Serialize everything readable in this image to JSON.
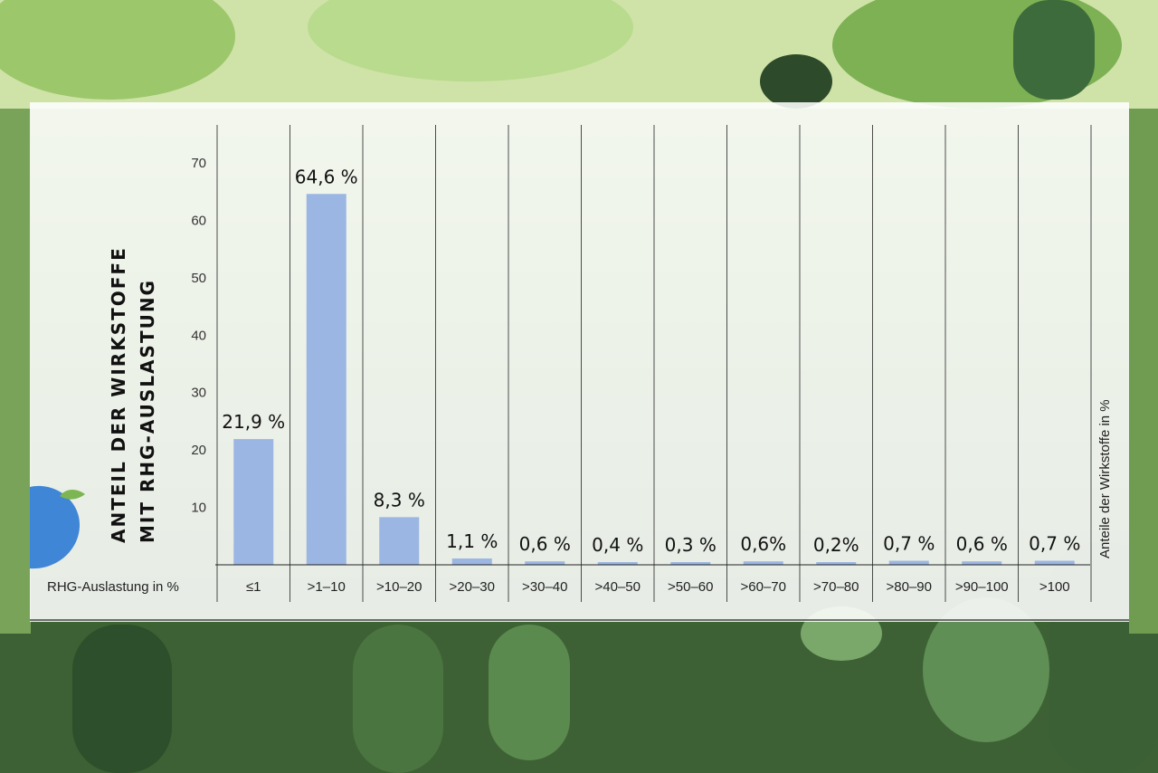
{
  "colors": {
    "bar": "#9bb6e2",
    "grid": "#222222",
    "accent_blue": "#3f86d6",
    "leaf_green": "#7cb552"
  },
  "chart_data": {
    "type": "bar",
    "categories": [
      "≤1",
      ">1–10",
      ">10–20",
      ">20–30",
      ">30–40",
      ">40–50",
      ">50–60",
      ">60–70",
      ">70–80",
      ">80–90",
      ">90–100",
      ">100"
    ],
    "values": [
      21.9,
      64.6,
      8.3,
      1.1,
      0.6,
      0.4,
      0.3,
      0.6,
      0.2,
      0.7,
      0.6,
      0.7
    ],
    "value_labels": [
      "21,9 %",
      "64,6 %",
      "8,3 %",
      "1,1 %",
      "0,6 %",
      "0,4 %",
      "0,3 %",
      "0,6%",
      "0,2%",
      "0,7 %",
      "0,6 %",
      "0,7 %"
    ],
    "ylim": [
      0,
      70
    ],
    "yticks": [
      10,
      20,
      30,
      40,
      50,
      60,
      70
    ],
    "ylabel_lines": [
      "ANTEIL DER WIRKSTOFFE",
      "MIT RHG-AUSLASTUNG"
    ],
    "xlabel": "RHG-Auslastung in %",
    "right_axis_label": "Anteile der Wirkstoffe in %",
    "grid": "vertical category separators"
  }
}
